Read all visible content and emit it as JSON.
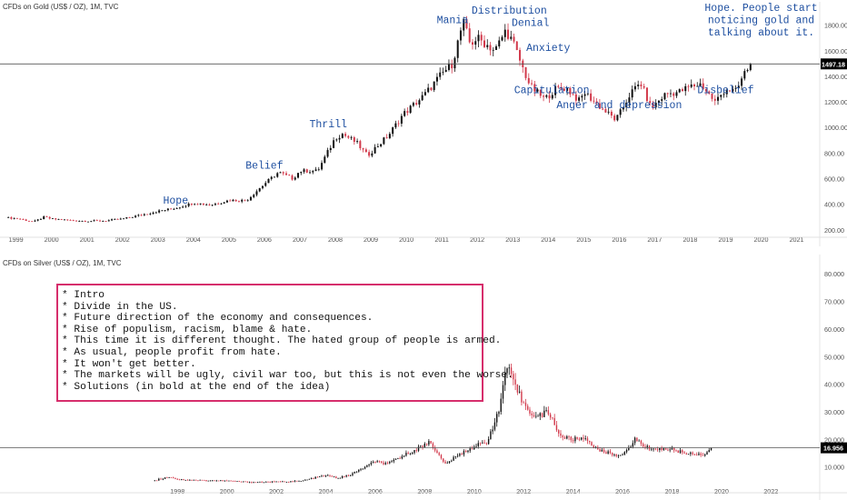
{
  "charts": {
    "gold": {
      "title": "CFDs on Gold (US$ / OZ), 1M, TVC",
      "price_label": "1497.18"
    },
    "silver": {
      "title": "CFDs on Silver (US$ / OZ), 1M, TVC",
      "price_label": "16.956"
    }
  },
  "notes": [
    "* Intro",
    "* Divide in the US.",
    "* Future direction of the economy and consequences.",
    "* Rise of populism, racism, blame & hate.",
    "* This time it is different thought. The hated group of people is armed.",
    "* As usual, people profit from hate.",
    "* It won't get better.",
    "* The markets will be ugly, civil war too, but this is not even the worse.",
    "* Solutions (in bold at the end of the idea)"
  ],
  "colors": {
    "up": "#111111",
    "down": "#d23a4c",
    "annotation": "#1e4fa0",
    "notes_border": "#d62e6c",
    "price_badge": "#000000"
  },
  "chart_data": [
    {
      "type": "candlestick",
      "title": "CFDs on Gold (US$ / OZ), 1M, TVC",
      "x_ticks": [
        "1999",
        "2000",
        "2001",
        "2002",
        "2003",
        "2004",
        "2005",
        "2006",
        "2007",
        "2008",
        "2009",
        "2010",
        "2011",
        "2012",
        "2013",
        "2014",
        "2015",
        "2016",
        "2017",
        "2018",
        "2019",
        "2020",
        "2021"
      ],
      "y_ticks": [
        "200.00",
        "400.00",
        "600.00",
        "800.00",
        "1000.00",
        "1200.00",
        "1400.00",
        "1600.00",
        "1800.00"
      ],
      "xlim": [
        1998.6,
        2021.6
      ],
      "ylim": [
        170,
        1940
      ],
      "last_price": 1497.18,
      "series": {
        "x": [
          1998.7,
          1999.0,
          1999.5,
          1999.8,
          2000.0,
          2000.5,
          2001.0,
          2001.5,
          2002.0,
          2002.5,
          2003.0,
          2003.5,
          2004.0,
          2004.5,
          2005.0,
          2005.5,
          2006.0,
          2006.4,
          2006.8,
          2007.0,
          2007.5,
          2008.0,
          2008.2,
          2008.6,
          2008.9,
          2009.5,
          2009.9,
          2010.5,
          2011.0,
          2011.3,
          2011.6,
          2011.8,
          2012.0,
          2012.5,
          2012.8,
          2013.0,
          2013.3,
          2013.5,
          2013.9,
          2014.2,
          2014.5,
          2014.9,
          2015.0,
          2015.5,
          2015.9,
          2016.0,
          2016.3,
          2016.6,
          2016.9,
          2017.3,
          2017.7,
          2018.0,
          2018.3,
          2018.7,
          2019.0,
          2019.3,
          2019.5,
          2019.7
        ],
        "close": [
          294,
          290,
          262,
          300,
          285,
          275,
          268,
          270,
          285,
          315,
          345,
          370,
          410,
          395,
          430,
          430,
          560,
          650,
          600,
          660,
          660,
          920,
          950,
          880,
          780,
          940,
          1100,
          1250,
          1420,
          1500,
          1830,
          1650,
          1700,
          1600,
          1760,
          1670,
          1450,
          1320,
          1220,
          1300,
          1310,
          1200,
          1280,
          1150,
          1060,
          1100,
          1260,
          1350,
          1150,
          1260,
          1280,
          1320,
          1340,
          1200,
          1300,
          1280,
          1410,
          1497.18
        ]
      },
      "annotations": [
        "Hope",
        "Belief",
        "Thrill",
        "Mania",
        "Distribution",
        "Denial",
        "Anxiety",
        "Capitulation",
        "Anger and depression",
        "Disbelief",
        "Hope. People start\nnoticing gold and\ntalking about it."
      ]
    },
    {
      "type": "candlestick",
      "title": "CFDs on Silver (US$ / OZ), 1M, TVC",
      "x_ticks": [
        "1998",
        "2000",
        "2002",
        "2004",
        "2006",
        "2008",
        "2010",
        "2012",
        "2014",
        "2016",
        "2018",
        "2020",
        "2022"
      ],
      "y_ticks": [
        "10.000",
        "20.000",
        "30.000",
        "40.000",
        "50.000",
        "60.000",
        "70.000",
        "80.000"
      ],
      "xlim": [
        1990.9,
        2023.9
      ],
      "ylim": [
        2,
        85
      ],
      "last_price": 16.956,
      "series": {
        "x": [
          1997.0,
          1997.7,
          1998.0,
          1999.0,
          2000.0,
          2001.0,
          2002.0,
          2003.0,
          2004.0,
          2004.5,
          2005.0,
          2006.0,
          2006.5,
          2007.0,
          2008.0,
          2008.2,
          2008.8,
          2009.5,
          2010.0,
          2010.5,
          2011.0,
          2011.3,
          2011.6,
          2012.0,
          2012.5,
          2013.0,
          2013.5,
          2014.0,
          2014.5,
          2015.0,
          2015.5,
          2016.0,
          2016.5,
          2017.0,
          2017.5,
          2018.0,
          2018.5,
          2019.0,
          2019.3,
          2019.6
        ],
        "close": [
          5.0,
          6.5,
          5.5,
          5.2,
          5.0,
          4.5,
          4.6,
          4.9,
          7.0,
          6.0,
          7.2,
          12.0,
          11.0,
          13.5,
          18.0,
          19.5,
          11.0,
          15.0,
          17.5,
          19.0,
          30.0,
          47.0,
          40.0,
          33.0,
          28.0,
          30.0,
          21.0,
          20.0,
          20.5,
          16.0,
          15.0,
          14.0,
          20.0,
          17.0,
          16.5,
          16.5,
          15.0,
          14.8,
          14.5,
          16.956
        ]
      }
    }
  ]
}
